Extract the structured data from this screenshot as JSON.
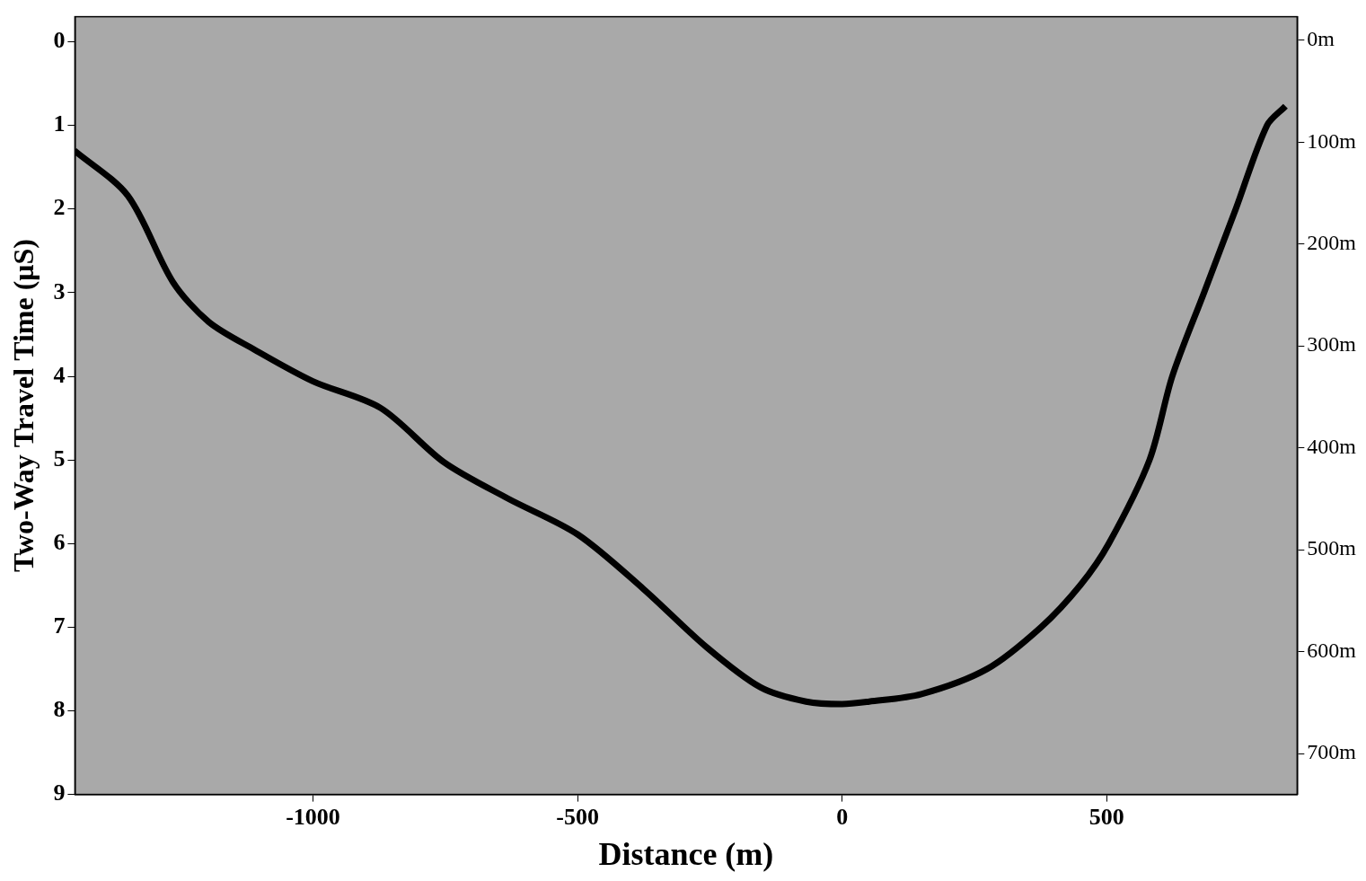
{
  "chart_data": {
    "type": "line",
    "x_label": "Distance (m)",
    "y_label": "Two-Way Travel Time (μS)",
    "x": [
      -1451,
      -1350,
      -1265,
      -1197,
      -1111,
      -1000,
      -872,
      -752,
      -632,
      -500,
      -376,
      -256,
      -154,
      -68,
      0,
      51,
      150,
      274,
      376,
      450,
      504,
      581,
      624,
      684,
      744,
      803,
      838
    ],
    "values": [
      1.3,
      1.84,
      2.87,
      3.35,
      3.68,
      4.06,
      4.38,
      5.03,
      5.46,
      5.89,
      6.54,
      7.24,
      7.72,
      7.89,
      7.92,
      7.89,
      7.8,
      7.5,
      7.0,
      6.5,
      6.0,
      5.0,
      4.0,
      3.0,
      2.0,
      1.0,
      0.77
    ],
    "color": "#000000",
    "line_style": "solid",
    "marker": "none",
    "xlim": [
      -1450,
      860
    ],
    "xticks": [
      -1000,
      -500,
      0,
      500
    ],
    "ylim": [
      -0.3,
      9
    ],
    "yticks": [
      0,
      1,
      2,
      3,
      4,
      5,
      6,
      7,
      8,
      9
    ],
    "y2lim": [
      -23,
      740
    ],
    "y2ticks": [
      {
        "value": 0,
        "label": "0m"
      },
      {
        "value": 100,
        "label": "100m"
      },
      {
        "value": 200,
        "label": "200m"
      },
      {
        "value": 300,
        "label": "300m"
      },
      {
        "value": 400,
        "label": "400m"
      },
      {
        "value": 500,
        "label": "500m"
      },
      {
        "value": 600,
        "label": "600m"
      },
      {
        "value": 700,
        "label": "700m"
      }
    ],
    "grid": false
  }
}
